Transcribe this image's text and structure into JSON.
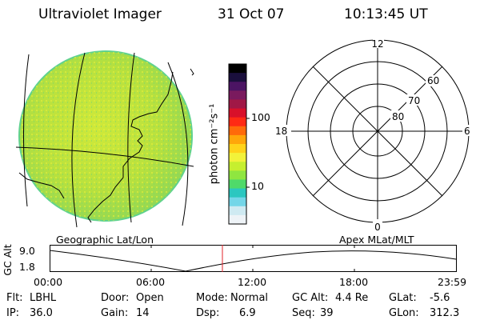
{
  "header": {
    "instrument": "Ultraviolet Imager",
    "date": "31 Oct 07",
    "time": "10:13:45 UT"
  },
  "colorbar": {
    "unit_label": "photon cm⁻²s⁻¹",
    "ticks": [
      "100",
      "10"
    ],
    "colors": [
      "#000000",
      "#1a0f3c",
      "#4b1463",
      "#7a1a5e",
      "#a01846",
      "#d8102a",
      "#ff2a14",
      "#ff6a0a",
      "#ffa60a",
      "#ffd31a",
      "#f2f23a",
      "#c6ef2f",
      "#8fe640",
      "#4fda6a",
      "#2bc7c0",
      "#74d6e8",
      "#cfeaf2",
      "#eef3f7"
    ]
  },
  "polar": {
    "mlt_labels": [
      "12",
      "18",
      "6",
      "0"
    ],
    "lat_labels": [
      "60",
      "70",
      "80"
    ]
  },
  "map_captions": {
    "left": "Geographic Lat/Lon",
    "right": "Apex MLat/MLT"
  },
  "gc_alt_plot": {
    "axis_label": "GC Alt",
    "y_ticks": [
      "9.0",
      "1.8"
    ],
    "x_ticks": [
      "00:00",
      "06:00",
      "12:00",
      "18:00",
      "23:59"
    ],
    "current_marker_time": "10:13:45"
  },
  "status": {
    "flt_label": "Flt:",
    "flt_value": "LBHL",
    "ip_label": "IP:",
    "ip_value": "36.0",
    "door_label": "Door:",
    "door_value": "Open",
    "gain_label": "Gain:",
    "gain_value": "14",
    "mode_label": "Mode:",
    "mode_value": "Normal",
    "dsp_label": "Dsp:",
    "dsp_value": "6.9",
    "gcalt_label": "GC Alt:",
    "gcalt_value": "4.4 Re",
    "seq_label": "Seq:",
    "seq_value": "39",
    "glat_label": "GLat:",
    "glat_value": "-5.6",
    "glon_label": "GLon:",
    "glon_value": "312.3"
  }
}
